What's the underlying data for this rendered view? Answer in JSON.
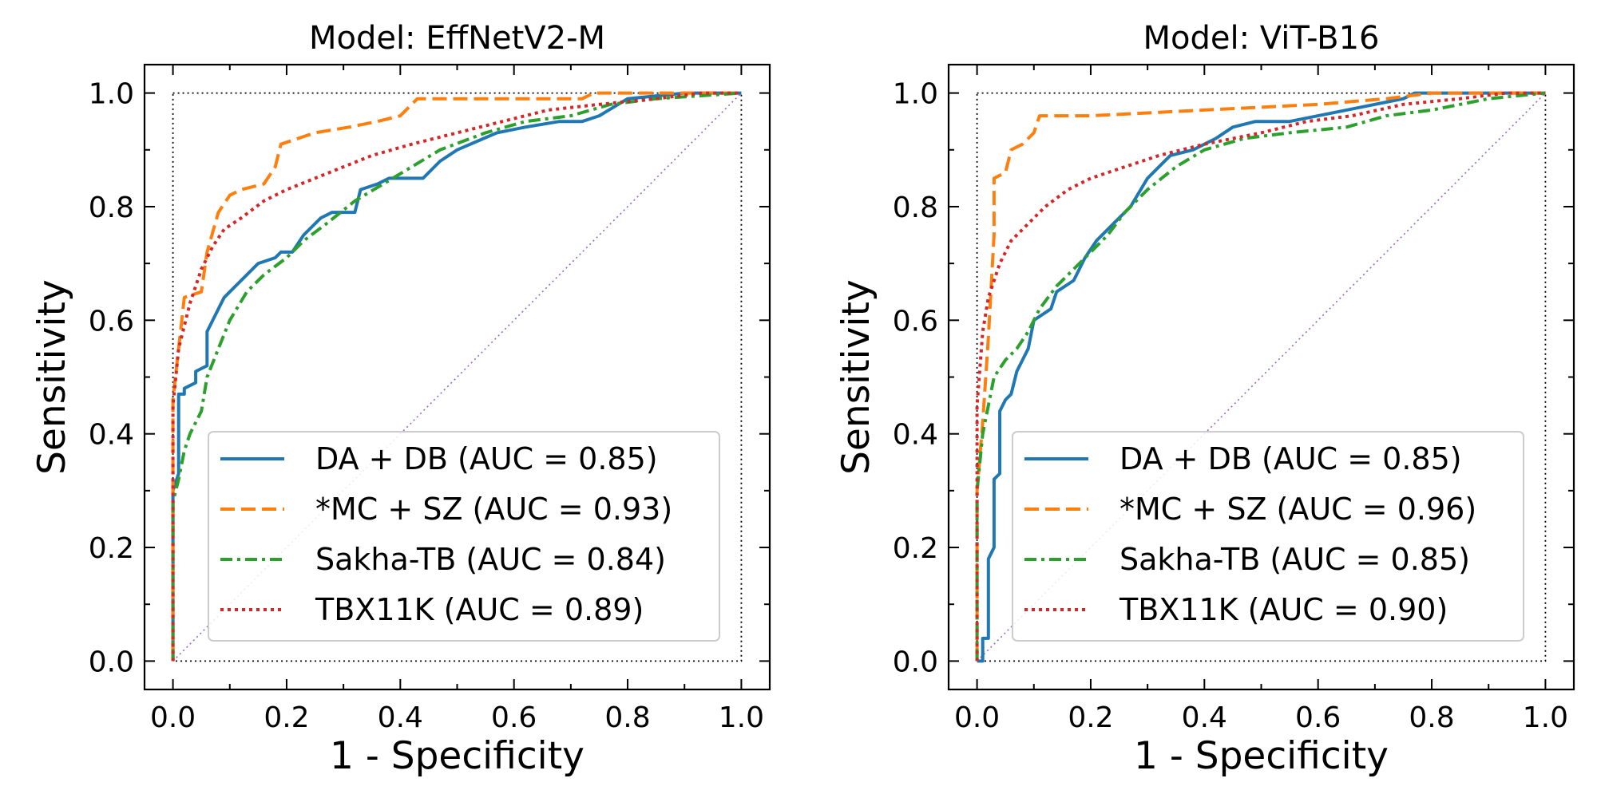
{
  "chart_data": [
    {
      "type": "line",
      "title": "Model: EffNetV2-M",
      "xlabel": "1 - Specificity",
      "ylabel": "Sensitivity",
      "xlim": [
        -0.05,
        1.05
      ],
      "ylim": [
        -0.05,
        1.05
      ],
      "xticks": [
        "0.0",
        "0.2",
        "0.4",
        "0.6",
        "0.8",
        "1.0"
      ],
      "yticks": [
        "0.0",
        "0.2",
        "0.4",
        "0.6",
        "0.8",
        "1.0"
      ],
      "grid": false,
      "legend_position": "lower-right",
      "series": [
        {
          "name": "DA + DB (AUC = 0.85)",
          "color": "#1f77b4",
          "dash": "solid",
          "points": [
            [
              0,
              0
            ],
            [
              0,
              0.3
            ],
            [
              0.01,
              0.33
            ],
            [
              0.01,
              0.47
            ],
            [
              0.02,
              0.47
            ],
            [
              0.02,
              0.48
            ],
            [
              0.04,
              0.49
            ],
            [
              0.04,
              0.51
            ],
            [
              0.06,
              0.52
            ],
            [
              0.06,
              0.58
            ],
            [
              0.08,
              0.62
            ],
            [
              0.09,
              0.64
            ],
            [
              0.11,
              0.66
            ],
            [
              0.12,
              0.67
            ],
            [
              0.15,
              0.7
            ],
            [
              0.18,
              0.71
            ],
            [
              0.19,
              0.72
            ],
            [
              0.21,
              0.72
            ],
            [
              0.23,
              0.75
            ],
            [
              0.26,
              0.78
            ],
            [
              0.28,
              0.79
            ],
            [
              0.32,
              0.79
            ],
            [
              0.33,
              0.83
            ],
            [
              0.36,
              0.84
            ],
            [
              0.38,
              0.85
            ],
            [
              0.44,
              0.85
            ],
            [
              0.47,
              0.88
            ],
            [
              0.5,
              0.9
            ],
            [
              0.57,
              0.93
            ],
            [
              0.62,
              0.94
            ],
            [
              0.68,
              0.95
            ],
            [
              0.72,
              0.95
            ],
            [
              0.75,
              0.96
            ],
            [
              0.8,
              0.99
            ],
            [
              0.9,
              1
            ],
            [
              1,
              1
            ]
          ]
        },
        {
          "name": "*MC + SZ (AUC = 0.93)",
          "color": "#ff7f0e",
          "dash": "dashed",
          "points": [
            [
              0,
              0
            ],
            [
              0,
              0.46
            ],
            [
              0.01,
              0.55
            ],
            [
              0.02,
              0.64
            ],
            [
              0.05,
              0.65
            ],
            [
              0.06,
              0.72
            ],
            [
              0.08,
              0.79
            ],
            [
              0.1,
              0.82
            ],
            [
              0.12,
              0.83
            ],
            [
              0.16,
              0.84
            ],
            [
              0.18,
              0.87
            ],
            [
              0.19,
              0.91
            ],
            [
              0.25,
              0.93
            ],
            [
              0.31,
              0.94
            ],
            [
              0.36,
              0.95
            ],
            [
              0.4,
              0.96
            ],
            [
              0.43,
              0.99
            ],
            [
              0.5,
              0.99
            ],
            [
              0.6,
              0.99
            ],
            [
              0.72,
              0.99
            ],
            [
              0.74,
              1
            ],
            [
              1,
              1
            ]
          ]
        },
        {
          "name": "Sakha-TB (AUC = 0.84)",
          "color": "#2ca02c",
          "dash": "dashdot",
          "points": [
            [
              0,
              0
            ],
            [
              0,
              0.28
            ],
            [
              0.01,
              0.32
            ],
            [
              0.02,
              0.37
            ],
            [
              0.03,
              0.4
            ],
            [
              0.05,
              0.44
            ],
            [
              0.06,
              0.5
            ],
            [
              0.08,
              0.55
            ],
            [
              0.1,
              0.6
            ],
            [
              0.13,
              0.65
            ],
            [
              0.16,
              0.68
            ],
            [
              0.2,
              0.71
            ],
            [
              0.23,
              0.74
            ],
            [
              0.27,
              0.77
            ],
            [
              0.32,
              0.81
            ],
            [
              0.37,
              0.84
            ],
            [
              0.42,
              0.87
            ],
            [
              0.47,
              0.9
            ],
            [
              0.55,
              0.93
            ],
            [
              0.62,
              0.95
            ],
            [
              0.7,
              0.96
            ],
            [
              0.77,
              0.98
            ],
            [
              0.85,
              0.99
            ],
            [
              1,
              1
            ]
          ]
        },
        {
          "name": "TBX11K (AUC = 0.89)",
          "color": "#d62728",
          "dash": "dotted",
          "points": [
            [
              0,
              0
            ],
            [
              0,
              0.45
            ],
            [
              0.01,
              0.55
            ],
            [
              0.03,
              0.63
            ],
            [
              0.05,
              0.69
            ],
            [
              0.07,
              0.73
            ],
            [
              0.09,
              0.76
            ],
            [
              0.12,
              0.78
            ],
            [
              0.16,
              0.81
            ],
            [
              0.2,
              0.83
            ],
            [
              0.25,
              0.85
            ],
            [
              0.3,
              0.87
            ],
            [
              0.35,
              0.89
            ],
            [
              0.42,
              0.91
            ],
            [
              0.5,
              0.93
            ],
            [
              0.58,
              0.95
            ],
            [
              0.66,
              0.97
            ],
            [
              0.75,
              0.98
            ],
            [
              0.85,
              0.99
            ],
            [
              0.93,
              1
            ],
            [
              1,
              1
            ]
          ]
        }
      ]
    },
    {
      "type": "line",
      "title": "Model: ViT-B16",
      "xlabel": "1 - Specificity",
      "ylabel": "Sensitivity",
      "xlim": [
        -0.05,
        1.05
      ],
      "ylim": [
        -0.05,
        1.05
      ],
      "xticks": [
        "0.0",
        "0.2",
        "0.4",
        "0.6",
        "0.8",
        "1.0"
      ],
      "yticks": [
        "0.0",
        "0.2",
        "0.4",
        "0.6",
        "0.8",
        "1.0"
      ],
      "grid": false,
      "legend_position": "lower-right",
      "series": [
        {
          "name": "DA + DB (AUC = 0.85)",
          "color": "#1f77b4",
          "dash": "solid",
          "points": [
            [
              0,
              0
            ],
            [
              0.01,
              0
            ],
            [
              0.01,
              0.04
            ],
            [
              0.02,
              0.04
            ],
            [
              0.02,
              0.18
            ],
            [
              0.03,
              0.2
            ],
            [
              0.03,
              0.32
            ],
            [
              0.04,
              0.33
            ],
            [
              0.04,
              0.44
            ],
            [
              0.05,
              0.46
            ],
            [
              0.06,
              0.47
            ],
            [
              0.07,
              0.51
            ],
            [
              0.09,
              0.55
            ],
            [
              0.1,
              0.6
            ],
            [
              0.13,
              0.62
            ],
            [
              0.14,
              0.65
            ],
            [
              0.17,
              0.67
            ],
            [
              0.19,
              0.71
            ],
            [
              0.21,
              0.74
            ],
            [
              0.24,
              0.77
            ],
            [
              0.27,
              0.8
            ],
            [
              0.3,
              0.85
            ],
            [
              0.32,
              0.87
            ],
            [
              0.34,
              0.89
            ],
            [
              0.38,
              0.9
            ],
            [
              0.42,
              0.92
            ],
            [
              0.45,
              0.94
            ],
            [
              0.49,
              0.95
            ],
            [
              0.55,
              0.95
            ],
            [
              0.6,
              0.96
            ],
            [
              0.65,
              0.97
            ],
            [
              0.7,
              0.98
            ],
            [
              0.75,
              0.99
            ],
            [
              0.77,
              1
            ],
            [
              1,
              1
            ]
          ]
        },
        {
          "name": "*MC + SZ (AUC = 0.96)",
          "color": "#ff7f0e",
          "dash": "dashed",
          "points": [
            [
              0,
              0
            ],
            [
              0,
              0.3
            ],
            [
              0.01,
              0.42
            ],
            [
              0.02,
              0.57
            ],
            [
              0.03,
              0.75
            ],
            [
              0.03,
              0.85
            ],
            [
              0.05,
              0.86
            ],
            [
              0.06,
              0.9
            ],
            [
              0.08,
              0.91
            ],
            [
              0.1,
              0.93
            ],
            [
              0.11,
              0.96
            ],
            [
              0.2,
              0.96
            ],
            [
              0.4,
              0.97
            ],
            [
              0.6,
              0.98
            ],
            [
              0.72,
              0.99
            ],
            [
              0.8,
              1
            ],
            [
              1,
              1
            ]
          ]
        },
        {
          "name": "Sakha-TB (AUC = 0.85)",
          "color": "#2ca02c",
          "dash": "dashdot",
          "points": [
            [
              0,
              0
            ],
            [
              0,
              0.3
            ],
            [
              0.01,
              0.4
            ],
            [
              0.02,
              0.45
            ],
            [
              0.03,
              0.5
            ],
            [
              0.05,
              0.53
            ],
            [
              0.07,
              0.55
            ],
            [
              0.09,
              0.58
            ],
            [
              0.11,
              0.62
            ],
            [
              0.14,
              0.66
            ],
            [
              0.17,
              0.69
            ],
            [
              0.2,
              0.72
            ],
            [
              0.23,
              0.75
            ],
            [
              0.26,
              0.79
            ],
            [
              0.3,
              0.83
            ],
            [
              0.35,
              0.87
            ],
            [
              0.4,
              0.9
            ],
            [
              0.47,
              0.92
            ],
            [
              0.55,
              0.93
            ],
            [
              0.65,
              0.94
            ],
            [
              0.72,
              0.96
            ],
            [
              0.8,
              0.97
            ],
            [
              0.9,
              0.99
            ],
            [
              1,
              1
            ]
          ]
        },
        {
          "name": "TBX11K (AUC = 0.90)",
          "color": "#d62728",
          "dash": "dotted",
          "points": [
            [
              0,
              0
            ],
            [
              0,
              0.45
            ],
            [
              0.01,
              0.58
            ],
            [
              0.02,
              0.64
            ],
            [
              0.04,
              0.7
            ],
            [
              0.06,
              0.74
            ],
            [
              0.09,
              0.77
            ],
            [
              0.12,
              0.8
            ],
            [
              0.16,
              0.83
            ],
            [
              0.2,
              0.85
            ],
            [
              0.26,
              0.87
            ],
            [
              0.32,
              0.89
            ],
            [
              0.4,
              0.91
            ],
            [
              0.5,
              0.93
            ],
            [
              0.58,
              0.95
            ],
            [
              0.66,
              0.96
            ],
            [
              0.75,
              0.98
            ],
            [
              0.85,
              0.99
            ],
            [
              0.93,
              1
            ],
            [
              1,
              1
            ]
          ]
        }
      ]
    }
  ]
}
